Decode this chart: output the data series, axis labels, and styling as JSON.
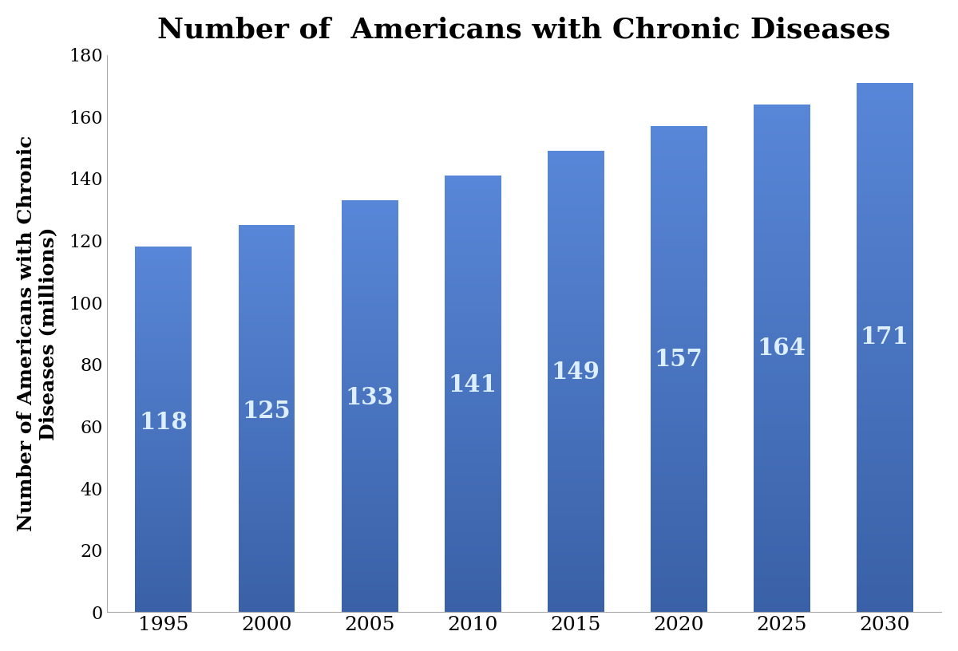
{
  "categories": [
    1995,
    2000,
    2005,
    2010,
    2015,
    2020,
    2025,
    2030
  ],
  "values": [
    118,
    125,
    133,
    141,
    149,
    157,
    164,
    171
  ],
  "bar_color": "#4472C4",
  "title": "Number of  Americans with Chronic Diseases",
  "ylabel_line1": "Number of Americans with Chronic",
  "ylabel_line2": "Diseases (millions)",
  "ylim": [
    0,
    180
  ],
  "yticks": [
    0,
    20,
    40,
    60,
    80,
    100,
    120,
    140,
    160,
    180
  ],
  "label_color": "#DDEEFF",
  "label_fontsize": 21,
  "title_fontsize": 26,
  "ylabel_fontsize": 18,
  "xtick_fontsize": 18,
  "ytick_fontsize": 16,
  "background_color": "#FFFFFF",
  "bar_width": 0.55
}
